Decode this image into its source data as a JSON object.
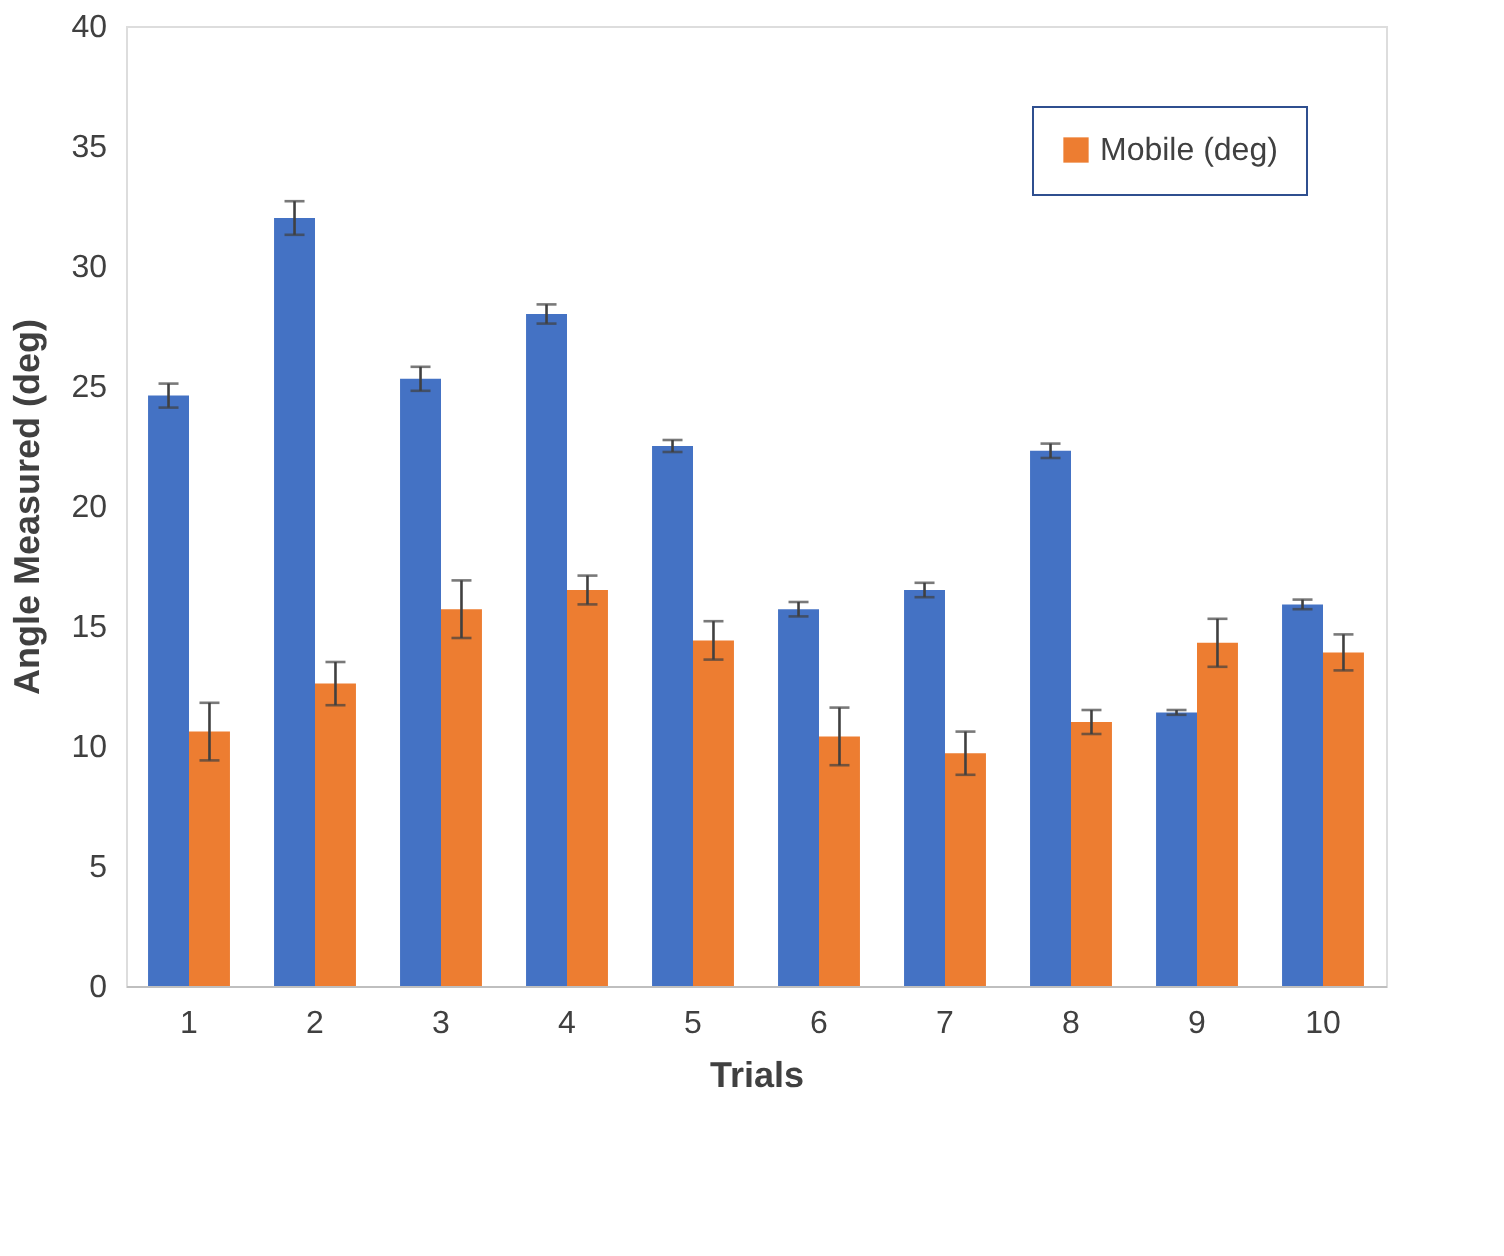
{
  "chart_data": {
    "type": "bar",
    "xlabel": "Trials",
    "ylabel": "Angle Measured (deg)",
    "categories": [
      "1",
      "2",
      "3",
      "4",
      "5",
      "6",
      "7",
      "8",
      "9",
      "10"
    ],
    "series": [
      {
        "color": "#4472c4",
        "values": [
          24.6,
          32.0,
          25.3,
          28.0,
          22.5,
          15.7,
          16.5,
          22.3,
          11.4,
          15.9
        ],
        "errors": [
          0.5,
          0.7,
          0.5,
          0.4,
          0.25,
          0.3,
          0.3,
          0.3,
          0.1,
          0.2
        ]
      },
      {
        "name": "Mobile (deg)",
        "color": "#ed7d31",
        "values": [
          10.6,
          12.6,
          15.7,
          16.5,
          14.4,
          10.4,
          9.7,
          11.0,
          14.3,
          13.9
        ],
        "errors": [
          1.2,
          0.9,
          1.2,
          0.6,
          0.8,
          1.2,
          0.9,
          0.5,
          1.0,
          0.75
        ]
      }
    ],
    "ylim": [
      0,
      40
    ],
    "yticks": [
      0,
      5,
      10,
      15,
      20,
      25,
      30,
      35,
      40
    ],
    "grid": false,
    "legend": "top right"
  }
}
